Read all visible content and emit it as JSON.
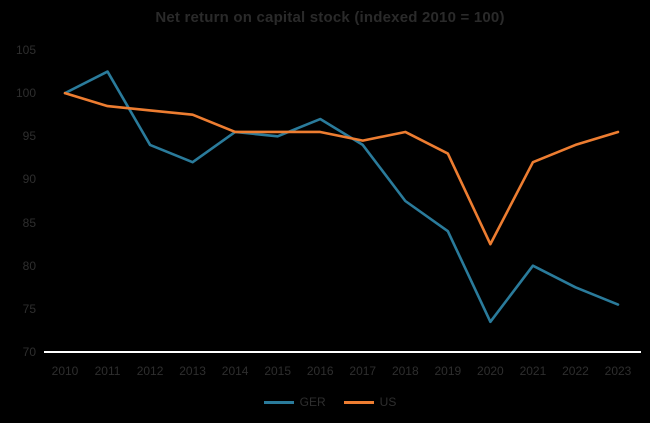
{
  "chart_data": {
    "type": "line",
    "title": "Net return on capital stock (indexed 2010 = 100)",
    "categories": [
      "2010",
      "2011",
      "2012",
      "2013",
      "2014",
      "2015",
      "2016",
      "2017",
      "2018",
      "2019",
      "2020",
      "2021",
      "2022",
      "2023"
    ],
    "series": [
      {
        "name": "GER",
        "color": "#2a7b9b",
        "values": [
          100,
          102.5,
          94,
          92,
          95.5,
          95,
          97,
          94,
          87.5,
          84,
          73.5,
          80,
          77.5,
          75.5
        ]
      },
      {
        "name": "US",
        "color": "#ed7d31",
        "values": [
          100,
          98.5,
          98,
          97.5,
          95.5,
          95.5,
          95.5,
          94.5,
          95.5,
          93,
          82.5,
          92,
          94,
          95.5
        ]
      }
    ],
    "xlabel": "",
    "ylabel": "",
    "ylim": [
      70,
      105
    ],
    "yticks": [
      105,
      100,
      95,
      90,
      85,
      80,
      75,
      70
    ],
    "grid": false,
    "legend_position": "bottom",
    "background_color": "#000000",
    "text_color": "#2e2e2e",
    "axis_line_color": "#ffffff"
  }
}
